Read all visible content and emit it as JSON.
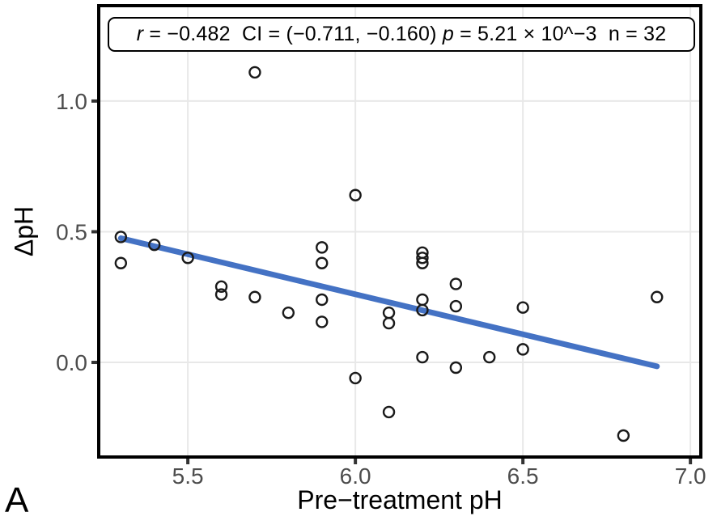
{
  "figure": {
    "panel_label": "A"
  },
  "annotation": {
    "r_italic": "r",
    "r_text": " = −0.482  CI = (−0.711, −0.160) ",
    "p_italic": "p",
    "p_text": " = 5.21 × 10^−3  n = 32"
  },
  "chart_data": {
    "type": "scatter",
    "title": "",
    "xlabel": "Pre−treatment pH",
    "ylabel": "ΔpH",
    "xlim": [
      5.234,
      7.031
    ],
    "ylim": [
      -0.362,
      1.365
    ],
    "grid": true,
    "legend": "none",
    "xticks": [
      {
        "value": 5.5,
        "label": "5.5"
      },
      {
        "value": 6.0,
        "label": "6.0"
      },
      {
        "value": 6.5,
        "label": "6.5"
      },
      {
        "value": 7.0,
        "label": "7.0"
      }
    ],
    "yticks": [
      {
        "value": 0.0,
        "label": "0.0"
      },
      {
        "value": 0.5,
        "label": "0.5"
      },
      {
        "value": 1.0,
        "label": "1.0"
      }
    ],
    "stats": {
      "r": -0.482,
      "ci_low": -0.711,
      "ci_high": -0.16,
      "p": "5.21 × 10^−3",
      "n": 32
    },
    "points": [
      [
        5.3,
        0.48
      ],
      [
        5.3,
        0.38
      ],
      [
        5.4,
        0.45
      ],
      [
        5.5,
        0.4
      ],
      [
        5.6,
        0.29
      ],
      [
        5.6,
        0.26
      ],
      [
        5.7,
        1.11
      ],
      [
        5.7,
        0.25
      ],
      [
        5.8,
        0.19
      ],
      [
        5.9,
        0.44
      ],
      [
        5.9,
        0.38
      ],
      [
        5.9,
        0.24
      ],
      [
        5.9,
        0.155
      ],
      [
        6.0,
        0.64
      ],
      [
        6.0,
        -0.06
      ],
      [
        6.1,
        0.19
      ],
      [
        6.1,
        0.15
      ],
      [
        6.1,
        -0.19
      ],
      [
        6.2,
        0.42
      ],
      [
        6.2,
        0.4
      ],
      [
        6.2,
        0.38
      ],
      [
        6.2,
        0.24
      ],
      [
        6.2,
        0.2
      ],
      [
        6.2,
        0.02
      ],
      [
        6.3,
        0.3
      ],
      [
        6.3,
        0.215
      ],
      [
        6.3,
        -0.02
      ],
      [
        6.4,
        0.02
      ],
      [
        6.5,
        0.21
      ],
      [
        6.5,
        0.05
      ],
      [
        6.8,
        -0.28
      ],
      [
        6.9,
        0.25
      ]
    ],
    "regression_line": {
      "x1": 5.3,
      "y1": 0.475,
      "x2": 6.9,
      "y2": -0.015
    },
    "colors": {
      "line": "#4472C4",
      "point_stroke": "#1a1a1a",
      "grid": "#e8e8e8",
      "axis_text": "#4d4d4d",
      "tick_mark": "#333333",
      "border": "#000000"
    }
  }
}
